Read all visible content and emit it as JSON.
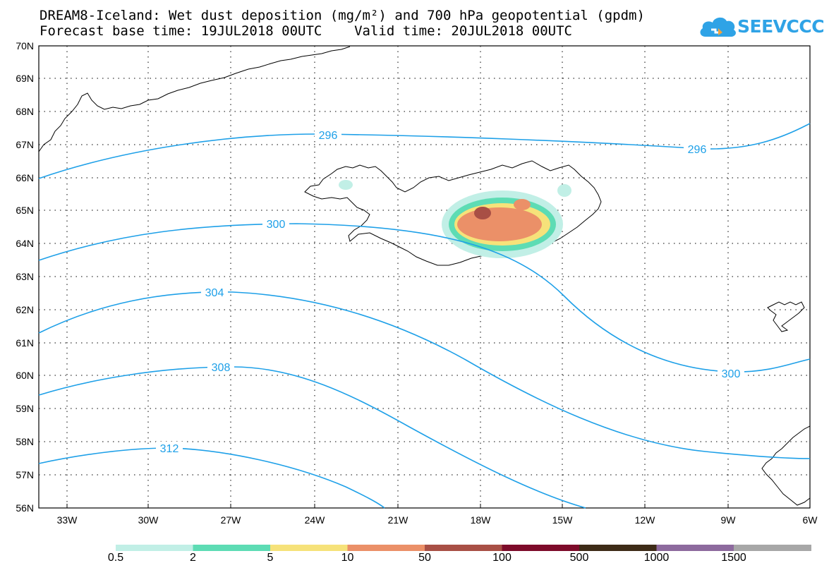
{
  "title": {
    "line1": "DREAM8-Iceland: Wet dust deposition (mg/m²) and 700 hPa geopotential (gpdm)",
    "line2": "Forecast base time: 19JUL2018 00UTC    Valid time: 20JUL2018 00UTC"
  },
  "logo": {
    "text": "SEEVCCC",
    "icon": "cloud-icon"
  },
  "map": {
    "lat_labels": [
      "70N",
      "69N",
      "68N",
      "67N",
      "66N",
      "65N",
      "64N",
      "63N",
      "62N",
      "61N",
      "60N",
      "59N",
      "58N",
      "57N",
      "56N"
    ],
    "lon_labels": [
      "33W",
      "30W",
      "27W",
      "24W",
      "21W",
      "18W",
      "15W",
      "12W",
      "9W",
      "6W"
    ],
    "contour_labels": [
      "296",
      "296",
      "300",
      "300",
      "304",
      "308",
      "312"
    ],
    "contour_color": "#1ea0e8",
    "grid": "dotted"
  },
  "legend": {
    "labels": [
      "0.5",
      "2",
      "5",
      "10",
      "50",
      "100",
      "500",
      "1000",
      "1500"
    ],
    "colors": [
      "#c1efe6",
      "#5ddcb4",
      "#f6e27a",
      "#eb9068",
      "#a84f45",
      "#7d0b2a",
      "#3d2b17",
      "#8d6a9e",
      "#a7a7a7"
    ]
  }
}
